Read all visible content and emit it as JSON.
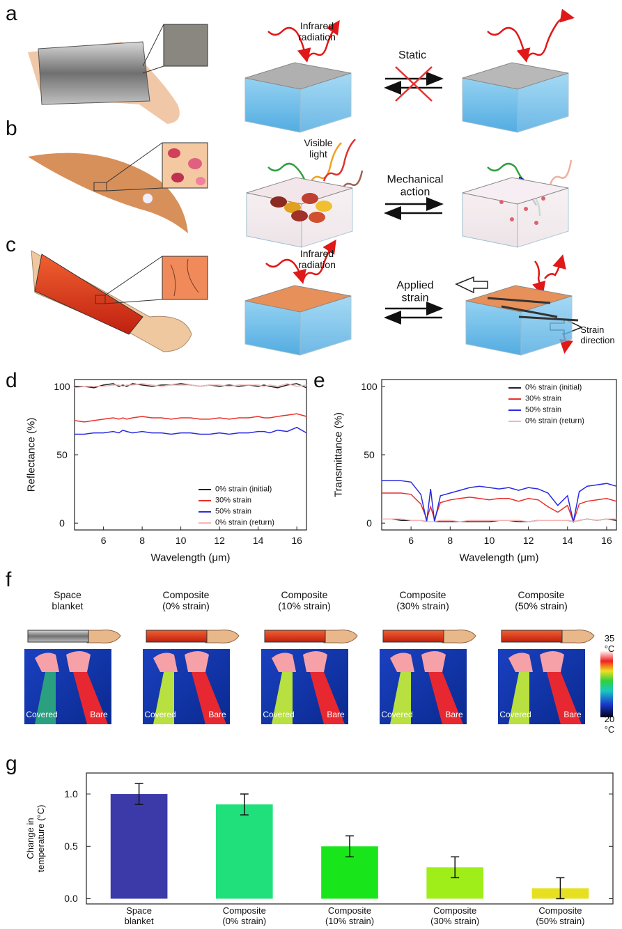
{
  "panel_labels": [
    "a",
    "b",
    "c",
    "d",
    "e",
    "f",
    "g"
  ],
  "illustrations": {
    "a": {
      "left_annotation": "Infrared\nradiation",
      "arrow_label": "Static"
    },
    "b": {
      "left_annotation": "Visible\nlight",
      "arrow_label": "Mechanical\naction"
    },
    "c": {
      "left_annotation": "Infrared\nradiation",
      "arrow_label": "Applied\nstrain",
      "right_annotation": "Strain\ndirection"
    }
  },
  "chart_data": [
    {
      "type": "line",
      "ylabel": "Reflectance (%)",
      "xlabel": "Wavelength (μm)",
      "x": [
        4.5,
        5,
        5.5,
        6,
        6.5,
        6.8,
        7,
        7.2,
        7.5,
        8,
        8.5,
        9,
        9.5,
        10,
        10.5,
        11,
        11.5,
        12,
        12.5,
        13,
        13.5,
        14,
        14.3,
        14.6,
        15,
        15.5,
        16,
        16.5
      ],
      "xlim": [
        4.5,
        16.5
      ],
      "ylim": [
        -5,
        105
      ],
      "xticks": [
        6,
        8,
        10,
        12,
        14,
        16
      ],
      "yticks": [
        0,
        50,
        100
      ],
      "legend": "lower right",
      "series": [
        {
          "name": "0% strain (initial)",
          "color": "#222222",
          "values": [
            100,
            100,
            99,
            101,
            102,
            100,
            101,
            100,
            102,
            101,
            100,
            101,
            101,
            102,
            101,
            100,
            101,
            100,
            101,
            100,
            101,
            100,
            101,
            100,
            99,
            101,
            102,
            99
          ]
        },
        {
          "name": "30% strain",
          "color": "#e8302a",
          "values": [
            75,
            74,
            75,
            76,
            77,
            76,
            77,
            76,
            77,
            78,
            77,
            77,
            76,
            77,
            77,
            76,
            76,
            77,
            76,
            77,
            77,
            78,
            77,
            77,
            78,
            79,
            80,
            78
          ]
        },
        {
          "name": "50% strain",
          "color": "#2a2ae0",
          "values": [
            65,
            65,
            66,
            66,
            67,
            66,
            68,
            67,
            66,
            67,
            66,
            66,
            65,
            66,
            66,
            65,
            65,
            66,
            65,
            66,
            66,
            67,
            67,
            66,
            68,
            67,
            70,
            66
          ]
        },
        {
          "name": "0% strain (return)",
          "color": "#f5b5b5",
          "values": [
            99,
            100,
            100,
            100,
            101,
            101,
            100,
            101,
            101,
            102,
            101,
            100,
            101,
            101,
            101,
            100,
            101,
            101,
            100,
            101,
            101,
            101,
            100,
            101,
            100,
            102,
            100,
            101
          ]
        }
      ]
    },
    {
      "type": "line",
      "ylabel": "Transmittance (%)",
      "xlabel": "Wavelength (μm)",
      "x": [
        4.5,
        5,
        5.5,
        6,
        6.5,
        6.8,
        7,
        7.2,
        7.5,
        8,
        8.5,
        9,
        9.5,
        10,
        10.5,
        11,
        11.5,
        12,
        12.5,
        13,
        13.5,
        14,
        14.3,
        14.6,
        15,
        15.5,
        16,
        16.5
      ],
      "xlim": [
        4.5,
        16.5
      ],
      "ylim": [
        -5,
        105
      ],
      "xticks": [
        6,
        8,
        10,
        12,
        14,
        16
      ],
      "yticks": [
        0,
        50,
        100
      ],
      "legend": "upper right",
      "series": [
        {
          "name": "0% strain (initial)",
          "color": "#222222",
          "values": [
            3,
            3,
            2,
            2,
            2,
            1,
            1,
            1,
            1,
            1,
            1,
            1,
            1,
            1,
            2,
            2,
            1,
            1,
            2,
            2,
            2,
            2,
            1,
            2,
            3,
            2,
            3,
            2
          ]
        },
        {
          "name": "30% strain",
          "color": "#e8302a",
          "values": [
            22,
            22,
            22,
            21,
            14,
            3,
            12,
            3,
            15,
            17,
            18,
            19,
            18,
            17,
            18,
            18,
            16,
            18,
            17,
            12,
            8,
            13,
            1,
            14,
            16,
            17,
            18,
            16
          ]
        },
        {
          "name": "50% strain",
          "color": "#2a2ae0",
          "values": [
            31,
            31,
            31,
            30,
            21,
            1,
            25,
            1,
            20,
            22,
            24,
            26,
            27,
            26,
            25,
            26,
            24,
            26,
            25,
            22,
            13,
            20,
            1,
            23,
            27,
            28,
            29,
            27
          ]
        },
        {
          "name": "0% strain (return)",
          "color": "#f5b5b5",
          "values": [
            3,
            3,
            3,
            2,
            2,
            1,
            1,
            1,
            2,
            2,
            1,
            2,
            2,
            2,
            2,
            2,
            2,
            1,
            2,
            2,
            2,
            2,
            1,
            2,
            3,
            2,
            3,
            3
          ]
        }
      ]
    },
    {
      "type": "bar",
      "ylabel": "Change in\ntemperature (°C)",
      "categories": [
        "Space\nblanket",
        "Composite\n(0% strain)",
        "Composite\n(10% strain)",
        "Composite\n(30% strain)",
        "Composite\n(50% strain)"
      ],
      "values": [
        1.0,
        0.9,
        0.5,
        0.3,
        0.1
      ],
      "errors": [
        0.1,
        0.1,
        0.1,
        0.1,
        0.1
      ],
      "colors": [
        "#3b3aa8",
        "#1fe07a",
        "#19e61a",
        "#9fee1a",
        "#e6e020"
      ],
      "ylim": [
        -0.05,
        1.2
      ],
      "yticks": [
        {
          "value": 0,
          "label": "0.0"
        },
        0.5,
        {
          "value": 1,
          "label": "1.0"
        }
      ]
    }
  ],
  "thermal": {
    "samples": [
      "Space\nblanket",
      "Composite\n(0% strain)",
      "Composite\n(10% strain)",
      "Composite\n(30% strain)",
      "Composite\n(50% strain)"
    ],
    "covered_label": "Covered",
    "bare_label": "Bare",
    "colorbar_max": "35 °C",
    "colorbar_min": "20 °C"
  }
}
